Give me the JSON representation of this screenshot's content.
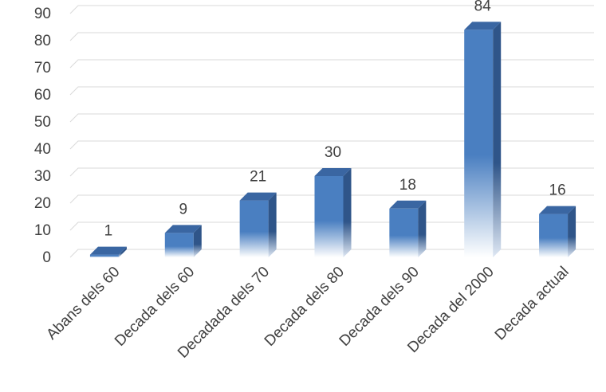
{
  "chart_data": {
    "type": "bar",
    "style": "3d-column",
    "categories": [
      "Abans dels 60",
      "Decada dels 60",
      "Decadada dels 70",
      "Decada dels 80",
      "Decada dels 90",
      "Decada del 2000",
      "Decada actual"
    ],
    "series": [
      {
        "values": [
          1,
          9,
          21,
          30,
          18,
          84,
          16
        ]
      }
    ],
    "ylim": [
      0,
      90
    ],
    "yticks": [
      0,
      10,
      20,
      30,
      40,
      50,
      60,
      70,
      80,
      90
    ],
    "grid": true,
    "data_labels": true,
    "legend": "none",
    "colors": {
      "bar_front": "#4a7fc1",
      "bar_side": "#2f5589",
      "bar_top": "#3a66a2",
      "grid": "#d9d9d9",
      "text": "#404040"
    }
  }
}
